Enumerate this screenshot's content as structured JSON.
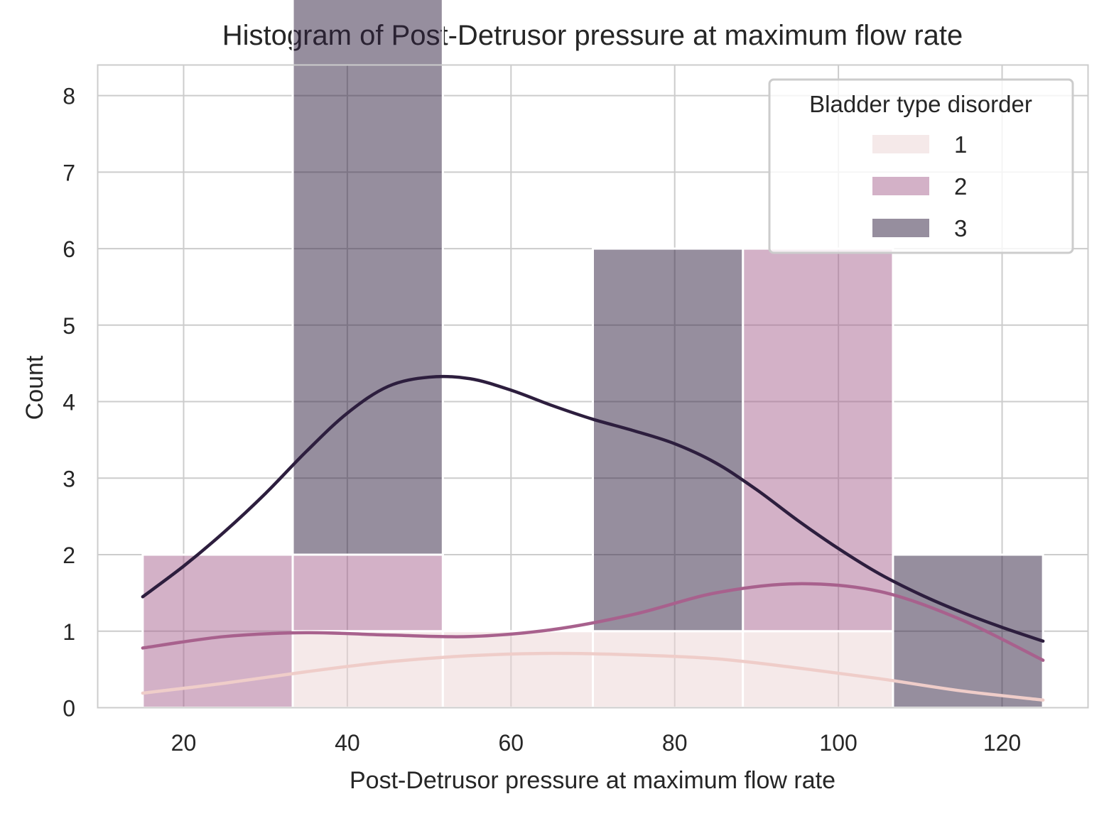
{
  "chart_data": {
    "type": "bar",
    "subtype": "stacked-histogram-with-kde",
    "title": "Histogram of Post-Detrusor pressure at maximum flow rate",
    "xlabel": "Post-Detrusor pressure at maximum flow rate",
    "ylabel": "Count",
    "xlim": [
      9.5,
      130.5
    ],
    "ylim": [
      0,
      8.4
    ],
    "xticks": [
      20,
      40,
      60,
      80,
      100,
      120
    ],
    "yticks": [
      0,
      1,
      2,
      3,
      4,
      5,
      6,
      7,
      8
    ],
    "grid": true,
    "bin_edges": [
      15,
      33.33,
      51.67,
      70,
      88.33,
      106.67,
      125
    ],
    "legend": {
      "title": "Bladder type disorder",
      "position": "upper-right"
    },
    "series": [
      {
        "name": "1",
        "color": "#ecd3d3",
        "bar_alpha": 0.5,
        "line_color": "#efcdc9",
        "counts": [
          0,
          1,
          1,
          1,
          1,
          0
        ],
        "kde": {
          "x": [
            15,
            25,
            35,
            45,
            55,
            65,
            75,
            85,
            95,
            105,
            115,
            125
          ],
          "y": [
            0.19,
            0.32,
            0.47,
            0.6,
            0.68,
            0.71,
            0.69,
            0.64,
            0.52,
            0.38,
            0.22,
            0.1
          ]
        }
      },
      {
        "name": "2",
        "color": "#a7648f",
        "bar_alpha": 0.5,
        "line_color": "#a8618d",
        "counts": [
          2,
          1,
          0,
          0,
          5,
          0
        ],
        "kde": {
          "x": [
            15,
            25,
            35,
            45,
            55,
            65,
            75,
            85,
            95,
            105,
            115,
            125
          ],
          "y": [
            0.78,
            0.93,
            0.98,
            0.95,
            0.93,
            1.02,
            1.22,
            1.5,
            1.62,
            1.52,
            1.15,
            0.62
          ]
        }
      },
      {
        "name": "3",
        "color": "#2d1e3e",
        "bar_alpha": 0.5,
        "line_color": "#2d1e3e",
        "counts": [
          0,
          8,
          0,
          5,
          0,
          2
        ],
        "kde": {
          "x": [
            15,
            20,
            25,
            30,
            35,
            40,
            45,
            50,
            55,
            60,
            65,
            70,
            75,
            80,
            85,
            90,
            95,
            100,
            105,
            110,
            115,
            120,
            125
          ],
          "y": [
            1.45,
            1.85,
            2.3,
            2.8,
            3.35,
            3.85,
            4.2,
            4.32,
            4.3,
            4.15,
            3.95,
            3.77,
            3.62,
            3.45,
            3.2,
            2.85,
            2.45,
            2.08,
            1.75,
            1.48,
            1.25,
            1.05,
            0.87
          ]
        }
      }
    ]
  }
}
